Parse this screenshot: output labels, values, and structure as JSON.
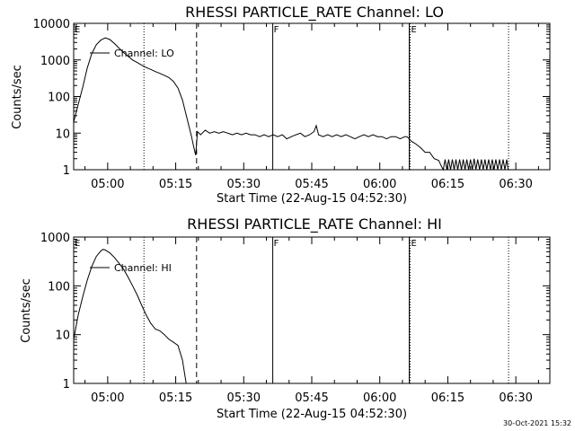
{
  "chart_data": [
    {
      "type": "line",
      "title": "RHESSI PARTICLE_RATE Channel: LO",
      "xlabel": "Start Time (22-Aug-15 04:52:30)",
      "ylabel": "Counts/sec",
      "yscale": "log",
      "ylim": [
        1,
        10000
      ],
      "xlim_minutes": [
        -7.5,
        97.5
      ],
      "x_ticks": [
        {
          "m": 0,
          "label": "05:00"
        },
        {
          "m": 15,
          "label": "05:15"
        },
        {
          "m": 30,
          "label": "05:30"
        },
        {
          "m": 45,
          "label": "05:45"
        },
        {
          "m": 60,
          "label": "06:00"
        },
        {
          "m": 75,
          "label": "06:15"
        },
        {
          "m": 90,
          "label": "06:30"
        }
      ],
      "y_ticks": [
        {
          "v": 1,
          "label": "1"
        },
        {
          "v": 10,
          "label": "10"
        },
        {
          "v": 100,
          "label": "100"
        },
        {
          "v": 1000,
          "label": "1000"
        },
        {
          "v": 10000,
          "label": "10000"
        }
      ],
      "grid": false,
      "series": [
        {
          "name": "Channel: LO",
          "points": [
            [
              -7.5,
              20
            ],
            [
              -6.5,
              60
            ],
            [
              -5.5,
              180
            ],
            [
              -4.5,
              600
            ],
            [
              -3.5,
              1500
            ],
            [
              -2.5,
              2600
            ],
            [
              -1.5,
              3500
            ],
            [
              -0.5,
              4000
            ],
            [
              0.5,
              3600
            ],
            [
              1.5,
              2800
            ],
            [
              2.5,
              2100
            ],
            [
              3.5,
              1600
            ],
            [
              4.5,
              1250
            ],
            [
              5.5,
              1000
            ],
            [
              6.5,
              850
            ],
            [
              7.5,
              720
            ],
            [
              8.5,
              620
            ],
            [
              9.5,
              550
            ],
            [
              10.5,
              480
            ],
            [
              11.5,
              430
            ],
            [
              12.5,
              380
            ],
            [
              13.5,
              330
            ],
            [
              14.5,
              260
            ],
            [
              15.5,
              170
            ],
            [
              16.5,
              80
            ],
            [
              17.5,
              25
            ],
            [
              18.5,
              8
            ],
            [
              19.0,
              4
            ],
            [
              19.4,
              2.5
            ],
            [
              19.8,
              11
            ],
            [
              20.5,
              9
            ],
            [
              21.5,
              12
            ],
            [
              22.5,
              10
            ],
            [
              23.5,
              11
            ],
            [
              24.5,
              10
            ],
            [
              25.5,
              11
            ],
            [
              26.5,
              10
            ],
            [
              27.5,
              9
            ],
            [
              28.5,
              10
            ],
            [
              29.5,
              9
            ],
            [
              30.5,
              10
            ],
            [
              31.5,
              9
            ],
            [
              32.5,
              9
            ],
            [
              33.5,
              8
            ],
            [
              34.5,
              9
            ],
            [
              35.5,
              8
            ],
            [
              36.5,
              9
            ],
            [
              37.5,
              8
            ],
            [
              38.5,
              9
            ],
            [
              39.5,
              7
            ],
            [
              40.5,
              8
            ],
            [
              41.5,
              9
            ],
            [
              42.5,
              10
            ],
            [
              43.5,
              8
            ],
            [
              44.5,
              9
            ],
            [
              45.5,
              11
            ],
            [
              46.0,
              16
            ],
            [
              46.5,
              9
            ],
            [
              47.5,
              8
            ],
            [
              48.5,
              9
            ],
            [
              49.5,
              8
            ],
            [
              50.5,
              9
            ],
            [
              51.5,
              8
            ],
            [
              52.5,
              9
            ],
            [
              53.5,
              8
            ],
            [
              54.5,
              7
            ],
            [
              55.5,
              8
            ],
            [
              56.5,
              9
            ],
            [
              57.5,
              8
            ],
            [
              58.5,
              9
            ],
            [
              59.5,
              8
            ],
            [
              60.5,
              8
            ],
            [
              61.5,
              7
            ],
            [
              62.5,
              8
            ],
            [
              63.5,
              8
            ],
            [
              64.5,
              7
            ],
            [
              65.5,
              8
            ],
            [
              66.0,
              8
            ],
            [
              67.0,
              6
            ],
            [
              68.0,
              5
            ],
            [
              69.0,
              4
            ],
            [
              70.0,
              3
            ],
            [
              71.0,
              3
            ],
            [
              72.0,
              2
            ],
            [
              73.0,
              1.8
            ],
            [
              73.5,
              1.3
            ],
            [
              74.0,
              0.9
            ],
            [
              74.4,
              1.9
            ],
            [
              74.8,
              0.9
            ],
            [
              75.2,
              1.9
            ],
            [
              75.6,
              0.9
            ],
            [
              76.0,
              1.9
            ],
            [
              76.4,
              0.9
            ],
            [
              76.8,
              1.9
            ],
            [
              77.2,
              0.9
            ],
            [
              77.6,
              1.9
            ],
            [
              78.0,
              0.9
            ],
            [
              78.4,
              1.9
            ],
            [
              78.8,
              0.9
            ],
            [
              79.2,
              1.9
            ],
            [
              79.6,
              0.9
            ],
            [
              80.0,
              1.9
            ],
            [
              80.4,
              0.9
            ],
            [
              80.8,
              2.0
            ],
            [
              81.2,
              0.9
            ],
            [
              81.6,
              1.9
            ],
            [
              82.0,
              0.9
            ],
            [
              82.4,
              1.9
            ],
            [
              82.8,
              0.9
            ],
            [
              83.2,
              1.9
            ],
            [
              83.6,
              0.9
            ],
            [
              84.0,
              1.9
            ],
            [
              84.4,
              0.9
            ],
            [
              84.8,
              1.9
            ],
            [
              85.2,
              0.9
            ],
            [
              85.6,
              1.9
            ],
            [
              86.0,
              0.9
            ],
            [
              86.4,
              1.9
            ],
            [
              86.8,
              0.9
            ],
            [
              87.2,
              1.9
            ],
            [
              87.6,
              0.9
            ],
            [
              88.0,
              1.9
            ],
            [
              88.3,
              0.9
            ]
          ]
        }
      ],
      "markers": [
        {
          "m": -7.5,
          "style": "dotted",
          "label": "E"
        },
        {
          "m": 8.0,
          "style": "dotted",
          "label": ""
        },
        {
          "m": 19.6,
          "style": "dashed",
          "label": ""
        },
        {
          "m": 36.4,
          "style": "solid",
          "label": "F"
        },
        {
          "m": 66.5,
          "style": "solid",
          "label": ""
        },
        {
          "m": 66.7,
          "style": "dotted",
          "label": "E"
        },
        {
          "m": 88.4,
          "style": "dotted",
          "label": ""
        }
      ]
    },
    {
      "type": "line",
      "title": "RHESSI PARTICLE_RATE Channel: HI",
      "xlabel": "Start Time (22-Aug-15 04:52:30)",
      "ylabel": "Counts/sec",
      "yscale": "log",
      "ylim": [
        1,
        1000
      ],
      "xlim_minutes": [
        -7.5,
        97.5
      ],
      "x_ticks": [
        {
          "m": 0,
          "label": "05:00"
        },
        {
          "m": 15,
          "label": "05:15"
        },
        {
          "m": 30,
          "label": "05:30"
        },
        {
          "m": 45,
          "label": "05:45"
        },
        {
          "m": 60,
          "label": "06:00"
        },
        {
          "m": 75,
          "label": "06:15"
        },
        {
          "m": 90,
          "label": "06:30"
        }
      ],
      "y_ticks": [
        {
          "v": 1,
          "label": "1"
        },
        {
          "v": 10,
          "label": "10"
        },
        {
          "v": 100,
          "label": "100"
        },
        {
          "v": 1000,
          "label": "1000"
        }
      ],
      "grid": false,
      "series": [
        {
          "name": "Channel: HI",
          "points": [
            [
              -7.5,
              8
            ],
            [
              -6.5,
              25
            ],
            [
              -5.5,
              60
            ],
            [
              -4.5,
              130
            ],
            [
              -3.5,
              250
            ],
            [
              -2.5,
              400
            ],
            [
              -1.5,
              520
            ],
            [
              -1.0,
              560
            ],
            [
              -0.5,
              540
            ],
            [
              0.5,
              470
            ],
            [
              1.5,
              380
            ],
            [
              2.5,
              290
            ],
            [
              3.5,
              220
            ],
            [
              4.5,
              150
            ],
            [
              5.5,
              100
            ],
            [
              6.5,
              65
            ],
            [
              7.5,
              40
            ],
            [
              8.5,
              25
            ],
            [
              9.5,
              17
            ],
            [
              10.5,
              13
            ],
            [
              11.5,
              12
            ],
            [
              12.5,
              10
            ],
            [
              13.5,
              8
            ],
            [
              14.5,
              7
            ],
            [
              15.5,
              6
            ],
            [
              16.5,
              3
            ],
            [
              17.0,
              1.5
            ],
            [
              17.3,
              0.8
            ]
          ]
        }
      ],
      "markers": [
        {
          "m": -7.5,
          "style": "dotted",
          "label": "E"
        },
        {
          "m": 8.0,
          "style": "dotted",
          "label": ""
        },
        {
          "m": 19.6,
          "style": "dashed",
          "label": ""
        },
        {
          "m": 36.4,
          "style": "solid",
          "label": "F"
        },
        {
          "m": 66.5,
          "style": "solid",
          "label": ""
        },
        {
          "m": 66.7,
          "style": "dotted",
          "label": "E"
        },
        {
          "m": 88.4,
          "style": "dotted",
          "label": ""
        }
      ]
    }
  ],
  "footer": {
    "timestamp": "30-Oct-2021 15:32"
  }
}
